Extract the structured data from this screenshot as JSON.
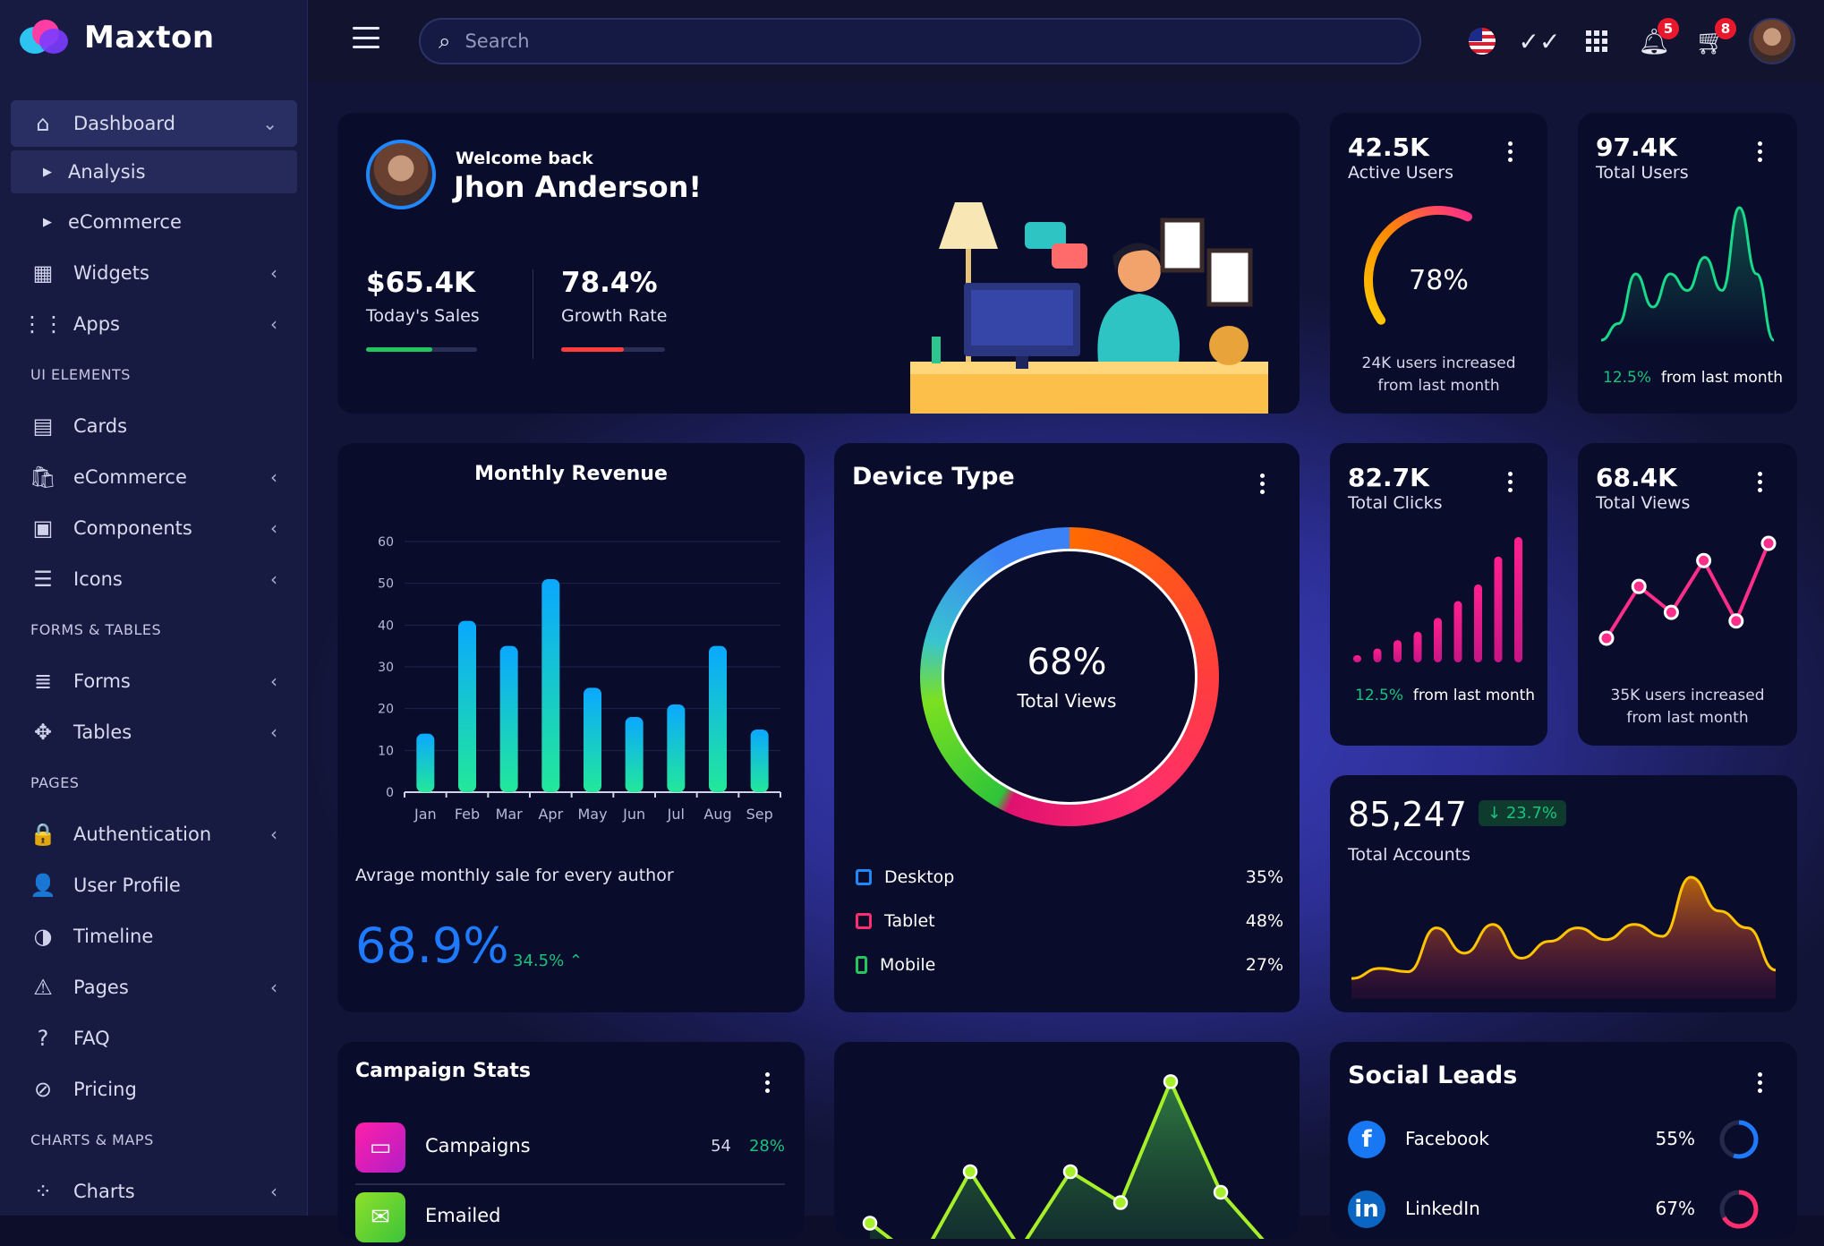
{
  "brand": {
    "name": "Maxton"
  },
  "sidebar": {
    "items": [
      {
        "type": "item",
        "label": "Dashboard",
        "icon": "home-icon",
        "glyph": "⌂",
        "active": true,
        "expand": "⌄"
      },
      {
        "type": "sub",
        "label": "Analysis",
        "active": true
      },
      {
        "type": "sub",
        "label": "eCommerce"
      },
      {
        "type": "item",
        "label": "Widgets",
        "icon": "widgets-icon",
        "glyph": "▦",
        "expand": "‹"
      },
      {
        "type": "item",
        "label": "Apps",
        "icon": "apps-grid-icon",
        "glyph": "⋮⋮",
        "expand": "‹"
      },
      {
        "type": "head",
        "label": "UI ELEMENTS"
      },
      {
        "type": "item",
        "label": "Cards",
        "icon": "cards-icon",
        "glyph": "▤"
      },
      {
        "type": "item",
        "label": "eCommerce",
        "icon": "shopping-bag-icon",
        "glyph": "🛍",
        "expand": "‹"
      },
      {
        "type": "item",
        "label": "Components",
        "icon": "components-icon",
        "glyph": "▣",
        "expand": "‹"
      },
      {
        "type": "item",
        "label": "Icons",
        "icon": "icons-icon",
        "glyph": "☰",
        "expand": "‹"
      },
      {
        "type": "head",
        "label": "FORMS & TABLES"
      },
      {
        "type": "item",
        "label": "Forms",
        "icon": "forms-icon",
        "glyph": "≣",
        "expand": "‹"
      },
      {
        "type": "item",
        "label": "Tables",
        "icon": "tables-icon",
        "glyph": "✥",
        "expand": "‹"
      },
      {
        "type": "head",
        "label": "PAGES"
      },
      {
        "type": "item",
        "label": "Authentication",
        "icon": "lock-icon",
        "glyph": "🔒",
        "expand": "‹"
      },
      {
        "type": "item",
        "label": "User Profile",
        "icon": "user-icon",
        "glyph": "👤"
      },
      {
        "type": "item",
        "label": "Timeline",
        "icon": "timeline-icon",
        "glyph": "◑"
      },
      {
        "type": "item",
        "label": "Pages",
        "icon": "warning-icon",
        "glyph": "⚠",
        "expand": "‹"
      },
      {
        "type": "item",
        "label": "FAQ",
        "icon": "help-icon",
        "glyph": "?"
      },
      {
        "type": "item",
        "label": "Pricing",
        "icon": "tag-icon",
        "glyph": "⊘"
      },
      {
        "type": "head",
        "label": "CHARTS & MAPS"
      },
      {
        "type": "item",
        "label": "Charts",
        "icon": "charts-icon",
        "glyph": "⁘",
        "expand": "‹"
      }
    ]
  },
  "topbar": {
    "search_placeholder": "Search",
    "notifications_count": "5",
    "cart_count": "8"
  },
  "welcome": {
    "greeting": "Welcome back",
    "name": "Jhon Anderson!",
    "stats": [
      {
        "value": "$65.4K",
        "label": "Today's Sales",
        "progress": 60,
        "color": "#22c55e"
      },
      {
        "value": "78.4%",
        "label": "Growth Rate",
        "progress": 60,
        "color": "#ff3d3d"
      }
    ]
  },
  "active_users": {
    "value": "42.5K",
    "label": "Active Users",
    "gauge_percent": 78,
    "gauge_text": "78%",
    "note": "24K users increased from last month"
  },
  "total_users": {
    "value": "97.4K",
    "label": "Total Users",
    "change": "12.5%",
    "change_text": "from last month",
    "series": [
      2,
      3,
      6,
      4,
      6,
      5,
      7,
      5,
      10,
      6,
      2
    ]
  },
  "total_clicks": {
    "value": "82.7K",
    "label": "Total Clicks",
    "change": "12.5%",
    "change_text": "from last month",
    "series": [
      2,
      5,
      8,
      11,
      16,
      22,
      28,
      38,
      45
    ]
  },
  "total_views": {
    "value": "68.4K",
    "label": "Total Views",
    "note": "35K users increased from last month",
    "series": [
      3,
      6,
      4.5,
      7.5,
      4,
      8.5
    ]
  },
  "total_accounts": {
    "value": "85,247",
    "change": "23.7%",
    "label": "Total Accounts",
    "series": [
      1,
      1.6,
      1.4,
      4,
      2.5,
      4.2,
      2.2,
      3.2,
      4,
      3.3,
      4.2,
      3.5,
      7,
      5,
      4,
      1.5
    ]
  },
  "monthly_revenue": {
    "title": "Monthly Revenue",
    "caption": "Avrage monthly sale for every author",
    "big_value": "68.9%",
    "change": "34.5%",
    "chart_data": {
      "type": "bar",
      "categories": [
        "Jan",
        "Feb",
        "Mar",
        "Apr",
        "May",
        "Jun",
        "Jul",
        "Aug",
        "Sep"
      ],
      "values": [
        14,
        41,
        35,
        51,
        25,
        18,
        21,
        35,
        15
      ],
      "ylim": [
        0,
        60
      ],
      "yticks": [
        0,
        10,
        20,
        30,
        40,
        50,
        60
      ],
      "grid": true
    }
  },
  "device_type": {
    "title": "Device Type",
    "center_value": "68%",
    "center_label": "Total Views",
    "items": [
      {
        "label": "Desktop",
        "value": "35%",
        "color": "#1e88ff",
        "icon": "monitor-icon"
      },
      {
        "label": "Tablet",
        "value": "48%",
        "color": "#ff2e6e",
        "icon": "tablet-icon"
      },
      {
        "label": "Mobile",
        "value": "27%",
        "color": "#22c55e",
        "icon": "mobile-icon"
      }
    ]
  },
  "campaign_stats": {
    "title": "Campaign Stats",
    "rows": [
      {
        "label": "Campaigns",
        "count": "54",
        "percent": "28%",
        "color": "#19c37d"
      },
      {
        "label": "Emailed",
        "count": "",
        "percent": "",
        "color": "#ff2e6e"
      }
    ]
  },
  "green_chart": {
    "series": [
      2,
      0.5,
      4,
      1,
      4,
      2.8,
      7.5,
      3.2,
      1
    ]
  },
  "social_leads": {
    "title": "Social Leads",
    "rows": [
      {
        "label": "Facebook",
        "value": "55%",
        "percent": 55,
        "color": "#1e7bff",
        "icon": "facebook-icon"
      },
      {
        "label": "LinkedIn",
        "value": "67%",
        "percent": 67,
        "color": "#ff2e6e",
        "icon": "linkedin-icon"
      }
    ]
  }
}
